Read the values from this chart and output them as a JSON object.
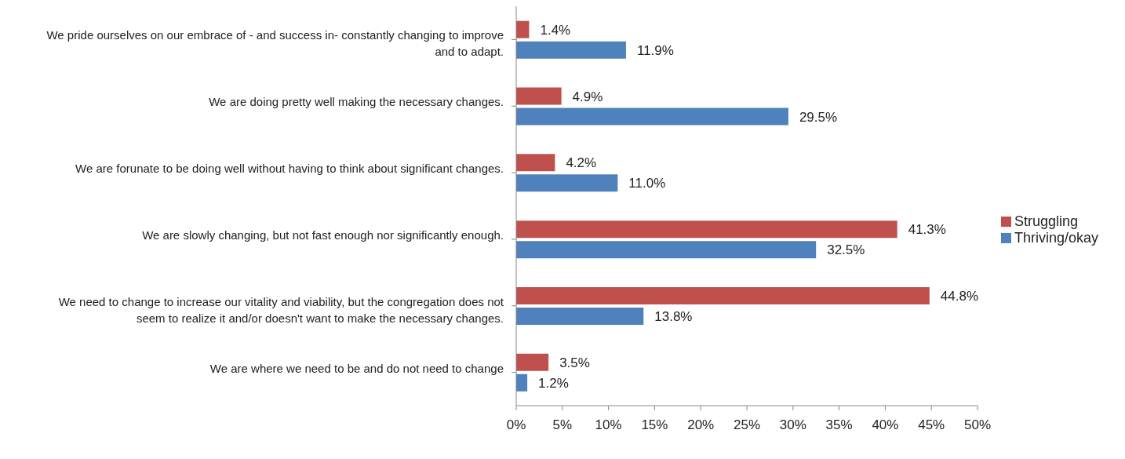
{
  "chart_data": {
    "type": "bar",
    "orientation": "horizontal",
    "categories": [
      "We pride ourselves on our embrace of - and success in- constantly changing to improve and to adapt.",
      "We are doing pretty well making the necessary changes.",
      "We are forunate to be doing well without having to think about significant changes.",
      "We are slowly changing, but not fast enough nor significantly enough.",
      "We need to change to increase our vitality and viability, but the congregation does not seem to realize it and/or doesn't want to make the necessary changes.",
      "We are where we need to be and do not need to change"
    ],
    "series": [
      {
        "name": "Struggling",
        "color": "#c0504d",
        "values": [
          1.4,
          4.9,
          4.2,
          41.3,
          44.8,
          3.5
        ],
        "value_labels": [
          "1.4%",
          "4.9%",
          "4.2%",
          "41.3%",
          "44.8%",
          "3.5%"
        ]
      },
      {
        "name": "Thriving/okay",
        "color": "#4f81bd",
        "values": [
          11.9,
          29.5,
          11.0,
          32.5,
          13.8,
          1.2
        ],
        "value_labels": [
          "11.9%",
          "29.5%",
          "11.0%",
          "32.5%",
          "13.8%",
          "1.2%"
        ]
      }
    ],
    "xlim": [
      0,
      50
    ],
    "xticks": [
      {
        "value": 0,
        "label": "0%"
      },
      {
        "value": 5,
        "label": "5%"
      },
      {
        "value": 10,
        "label": "10%"
      },
      {
        "value": 15,
        "label": "15%"
      },
      {
        "value": 20,
        "label": "20%"
      },
      {
        "value": 25,
        "label": "25%"
      },
      {
        "value": 30,
        "label": "30%"
      },
      {
        "value": 35,
        "label": "35%"
      },
      {
        "value": 40,
        "label": "40%"
      },
      {
        "value": 45,
        "label": "45%"
      },
      {
        "value": 50,
        "label": "50%"
      }
    ],
    "grid": false,
    "legend": "right"
  }
}
